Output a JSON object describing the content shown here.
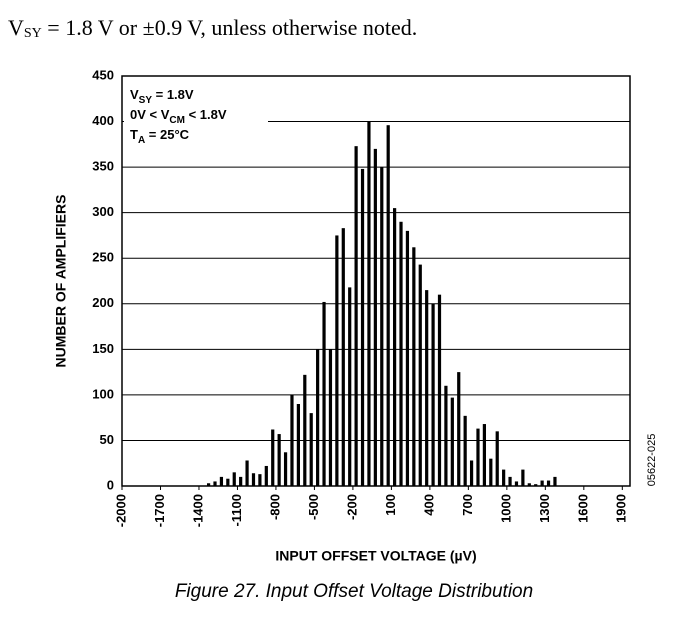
{
  "header": {
    "parts": [
      "V",
      "SY",
      " = 1.8 V or ±0.9 V, unless otherwise noted."
    ]
  },
  "chart_data": {
    "type": "histogram",
    "xlabel": "INPUT OFFSET VOLTAGE (µV)",
    "ylabel": "NUMBER OF AMPLIFIERS",
    "annotations": [
      [
        "V",
        "SY",
        " = 1.8V"
      ],
      [
        "0V < V",
        "CM",
        " < 1.8V"
      ],
      [
        "T",
        "A",
        " = 25°C"
      ]
    ],
    "figure_id": "05622-025",
    "color": "#000000",
    "grid": true,
    "xlim": [
      -2000,
      1960
    ],
    "xticks": [
      -2000,
      -1700,
      -1400,
      -1100,
      -800,
      -500,
      -200,
      100,
      400,
      700,
      1000,
      1300,
      1600,
      1900
    ],
    "ylim": [
      0,
      450
    ],
    "yticks": [
      0,
      50,
      100,
      150,
      200,
      250,
      300,
      350,
      400,
      450
    ],
    "bins": [
      -1350,
      -1300,
      -1250,
      -1200,
      -1150,
      -1100,
      -1050,
      -1000,
      -950,
      -900,
      -850,
      -800,
      -750,
      -700,
      -650,
      -600,
      -550,
      -500,
      -450,
      -400,
      -350,
      -300,
      -250,
      -200,
      -150,
      -100,
      -50,
      0,
      50,
      100,
      150,
      200,
      250,
      300,
      350,
      400,
      450,
      500,
      550,
      600,
      650,
      700,
      750,
      800,
      850,
      900,
      950,
      1000,
      1050,
      1100,
      1150,
      1200,
      1250,
      1300,
      1350,
      1400
    ],
    "values": [
      3,
      5,
      10,
      8,
      15,
      10,
      28,
      14,
      13,
      22,
      62,
      57,
      37,
      100,
      90,
      122,
      80,
      150,
      202,
      150,
      275,
      283,
      218,
      373,
      348,
      400,
      370,
      350,
      396,
      305,
      290,
      280,
      262,
      243,
      215,
      200,
      210,
      110,
      97,
      125,
      77,
      28,
      63,
      68,
      30,
      60,
      18,
      10,
      5,
      18,
      3,
      2,
      6,
      6,
      10
    ]
  },
  "caption": "Figure 27. Input Offset Voltage Distribution"
}
